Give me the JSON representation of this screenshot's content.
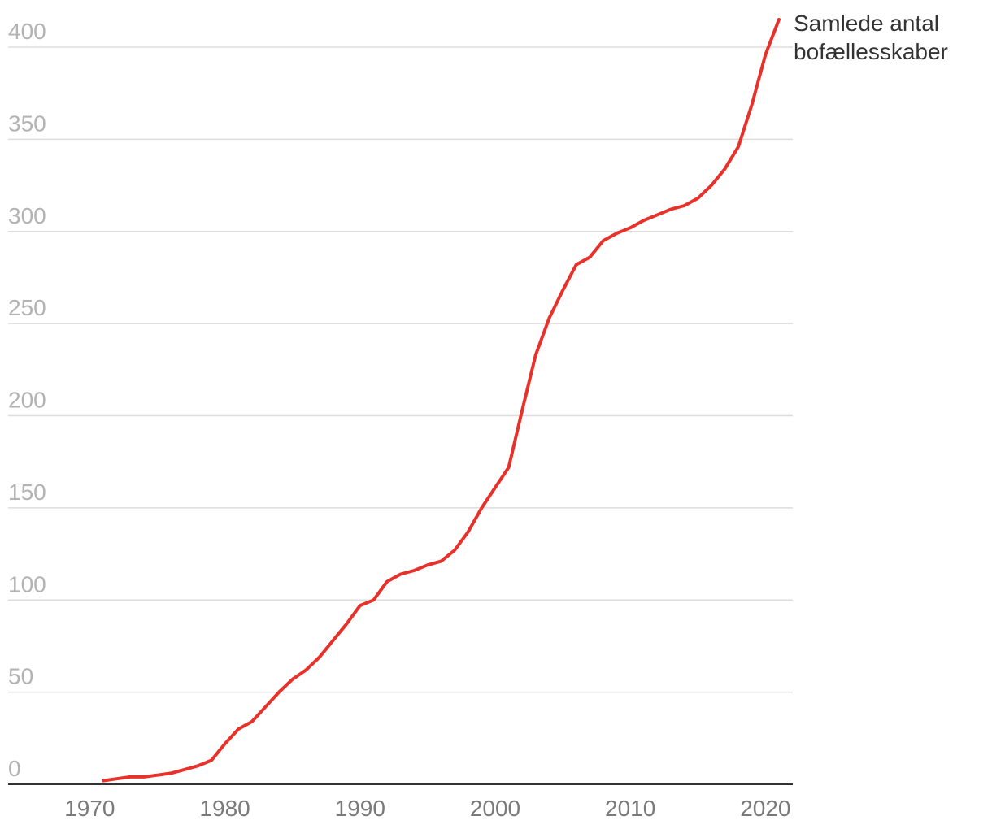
{
  "chart_data": {
    "type": "line",
    "title": "",
    "xlabel": "",
    "ylabel": "",
    "xlim": [
      1965,
      2022
    ],
    "ylim": [
      0,
      400
    ],
    "x_ticks": [
      1970,
      1980,
      1990,
      2000,
      2010,
      2020
    ],
    "y_ticks": [
      0,
      50,
      100,
      150,
      200,
      250,
      300,
      350,
      400
    ],
    "x_tick_labels": [
      "1970",
      "1980",
      "1990",
      "2000",
      "2010",
      "2020"
    ],
    "y_tick_labels": [
      "0",
      "50",
      "100",
      "150",
      "200",
      "250",
      "300",
      "350",
      "400"
    ],
    "grid": true,
    "legend": "end-of-line label",
    "colors": {
      "series": "#e8312a",
      "grid": "#dddddd",
      "axis": "#333333",
      "y_ticks": "#b3b3b3",
      "x_ticks": "#7a7a7a"
    },
    "series": [
      {
        "name": "Samlede antal bofællesskaber",
        "label_lines": [
          "Samlede antal",
          "bofællesskaber"
        ],
        "x": [
          1971,
          1972,
          1973,
          1974,
          1975,
          1976,
          1977,
          1978,
          1979,
          1980,
          1981,
          1982,
          1983,
          1984,
          1985,
          1986,
          1987,
          1988,
          1989,
          1990,
          1991,
          1992,
          1993,
          1994,
          1995,
          1996,
          1997,
          1998,
          1999,
          2000,
          2001,
          2002,
          2003,
          2004,
          2005,
          2006,
          2007,
          2008,
          2009,
          2010,
          2011,
          2012,
          2013,
          2014,
          2015,
          2016,
          2017,
          2018,
          2019,
          2020,
          2021
        ],
        "y": [
          2,
          3,
          4,
          4,
          5,
          6,
          8,
          10,
          13,
          22,
          30,
          34,
          42,
          50,
          57,
          62,
          69,
          78,
          87,
          97,
          100,
          110,
          114,
          116,
          119,
          121,
          127,
          137,
          150,
          161,
          172,
          203,
          233,
          253,
          268,
          282,
          286,
          295,
          299,
          302,
          306,
          309,
          312,
          314,
          318,
          325,
          334,
          346,
          369,
          396,
          415
        ]
      }
    ]
  }
}
